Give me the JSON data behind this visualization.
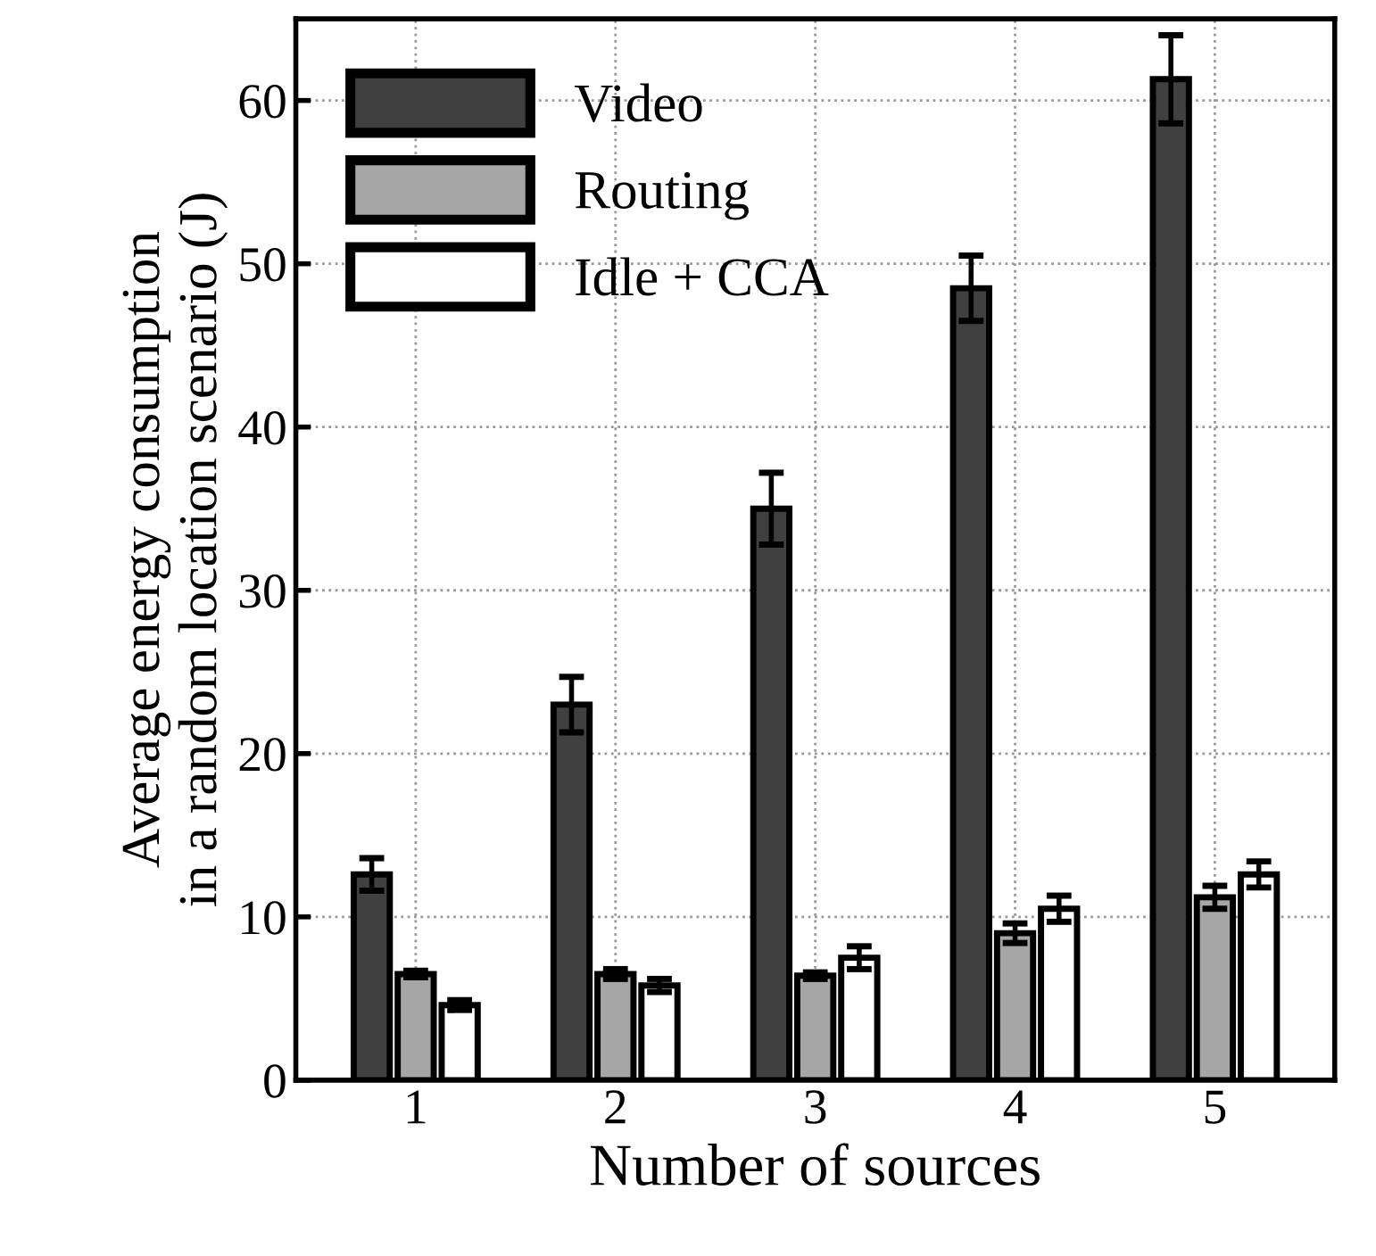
{
  "chart_data": {
    "type": "bar",
    "xlabel": "Number of sources",
    "ylabel": "Average energy consumption\nin a random location scenario (J)",
    "categories": [
      "1",
      "2",
      "3",
      "4",
      "5"
    ],
    "series": [
      {
        "name": "Video",
        "color": "#404040",
        "values": [
          12.6,
          23,
          35,
          48.5,
          61.3
        ],
        "errors": [
          1,
          1.7,
          2.2,
          2,
          2.7
        ]
      },
      {
        "name": "Routing",
        "color": "#a6a6a6",
        "values": [
          6.5,
          6.5,
          6.4,
          9,
          11.2
        ],
        "errors": [
          0.2,
          0.3,
          0.2,
          0.6,
          0.7
        ]
      },
      {
        "name": "Idle + CCA",
        "color": "#ffffff",
        "values": [
          4.6,
          5.8,
          7.5,
          10.5,
          12.6
        ],
        "errors": [
          0.3,
          0.4,
          0.7,
          0.8,
          0.8
        ]
      }
    ],
    "ylim": [
      0,
      65
    ],
    "yticks": [
      0,
      10,
      20,
      30,
      40,
      50,
      60
    ],
    "grid": true,
    "legend": "top left"
  }
}
